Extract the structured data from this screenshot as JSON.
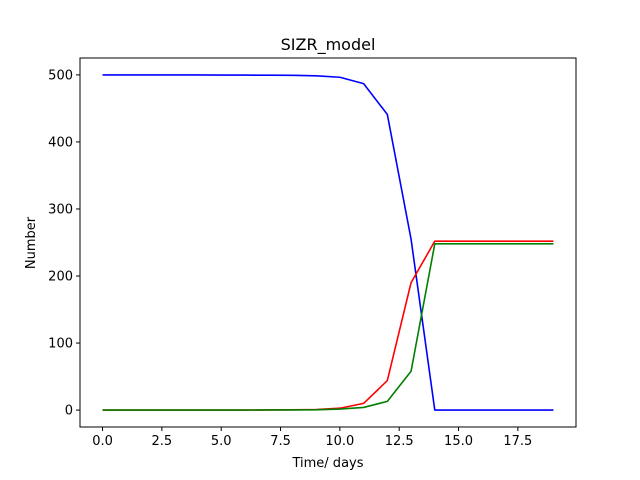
{
  "chart_data": {
    "type": "line",
    "title": "SIZR_model",
    "xlabel": "Time/ days",
    "ylabel": "Number",
    "xlim": [
      -0.95,
      19.95
    ],
    "ylim": [
      -25.2,
      525.2
    ],
    "xticks": [
      0.0,
      2.5,
      5.0,
      7.5,
      10.0,
      12.5,
      15.0,
      17.5
    ],
    "xtick_labels": [
      "0.0",
      "2.5",
      "5.0",
      "7.5",
      "10.0",
      "12.5",
      "15.0",
      "17.5"
    ],
    "yticks": [
      0,
      100,
      200,
      300,
      400,
      500
    ],
    "ytick_labels": [
      "0",
      "100",
      "200",
      "300",
      "400",
      "500"
    ],
    "grid": false,
    "x": [
      0,
      1,
      2,
      3,
      4,
      5,
      6,
      7,
      8,
      9,
      10,
      11,
      12,
      13,
      14,
      15,
      16,
      17,
      18,
      19
    ],
    "series": [
      {
        "color": "#0000ff",
        "values": [
          500,
          500,
          500,
          500,
          499.9,
          499.8,
          499.7,
          499.5,
          499.3,
          498.7,
          496.5,
          487,
          441,
          255,
          0,
          0,
          0,
          0,
          0,
          0
        ]
      },
      {
        "color": "#ff0000",
        "values": [
          0,
          0,
          0,
          0,
          0,
          0,
          0.1,
          0.2,
          0.4,
          0.9,
          2.8,
          10,
          44,
          190,
          252,
          252,
          252,
          252,
          252,
          252
        ]
      },
      {
        "color": "#008000",
        "values": [
          0,
          0,
          0,
          0,
          0,
          0,
          0.1,
          0.2,
          0.3,
          0.5,
          1.5,
          4,
          13,
          58,
          248,
          248,
          248,
          248,
          248,
          248
        ]
      }
    ]
  }
}
